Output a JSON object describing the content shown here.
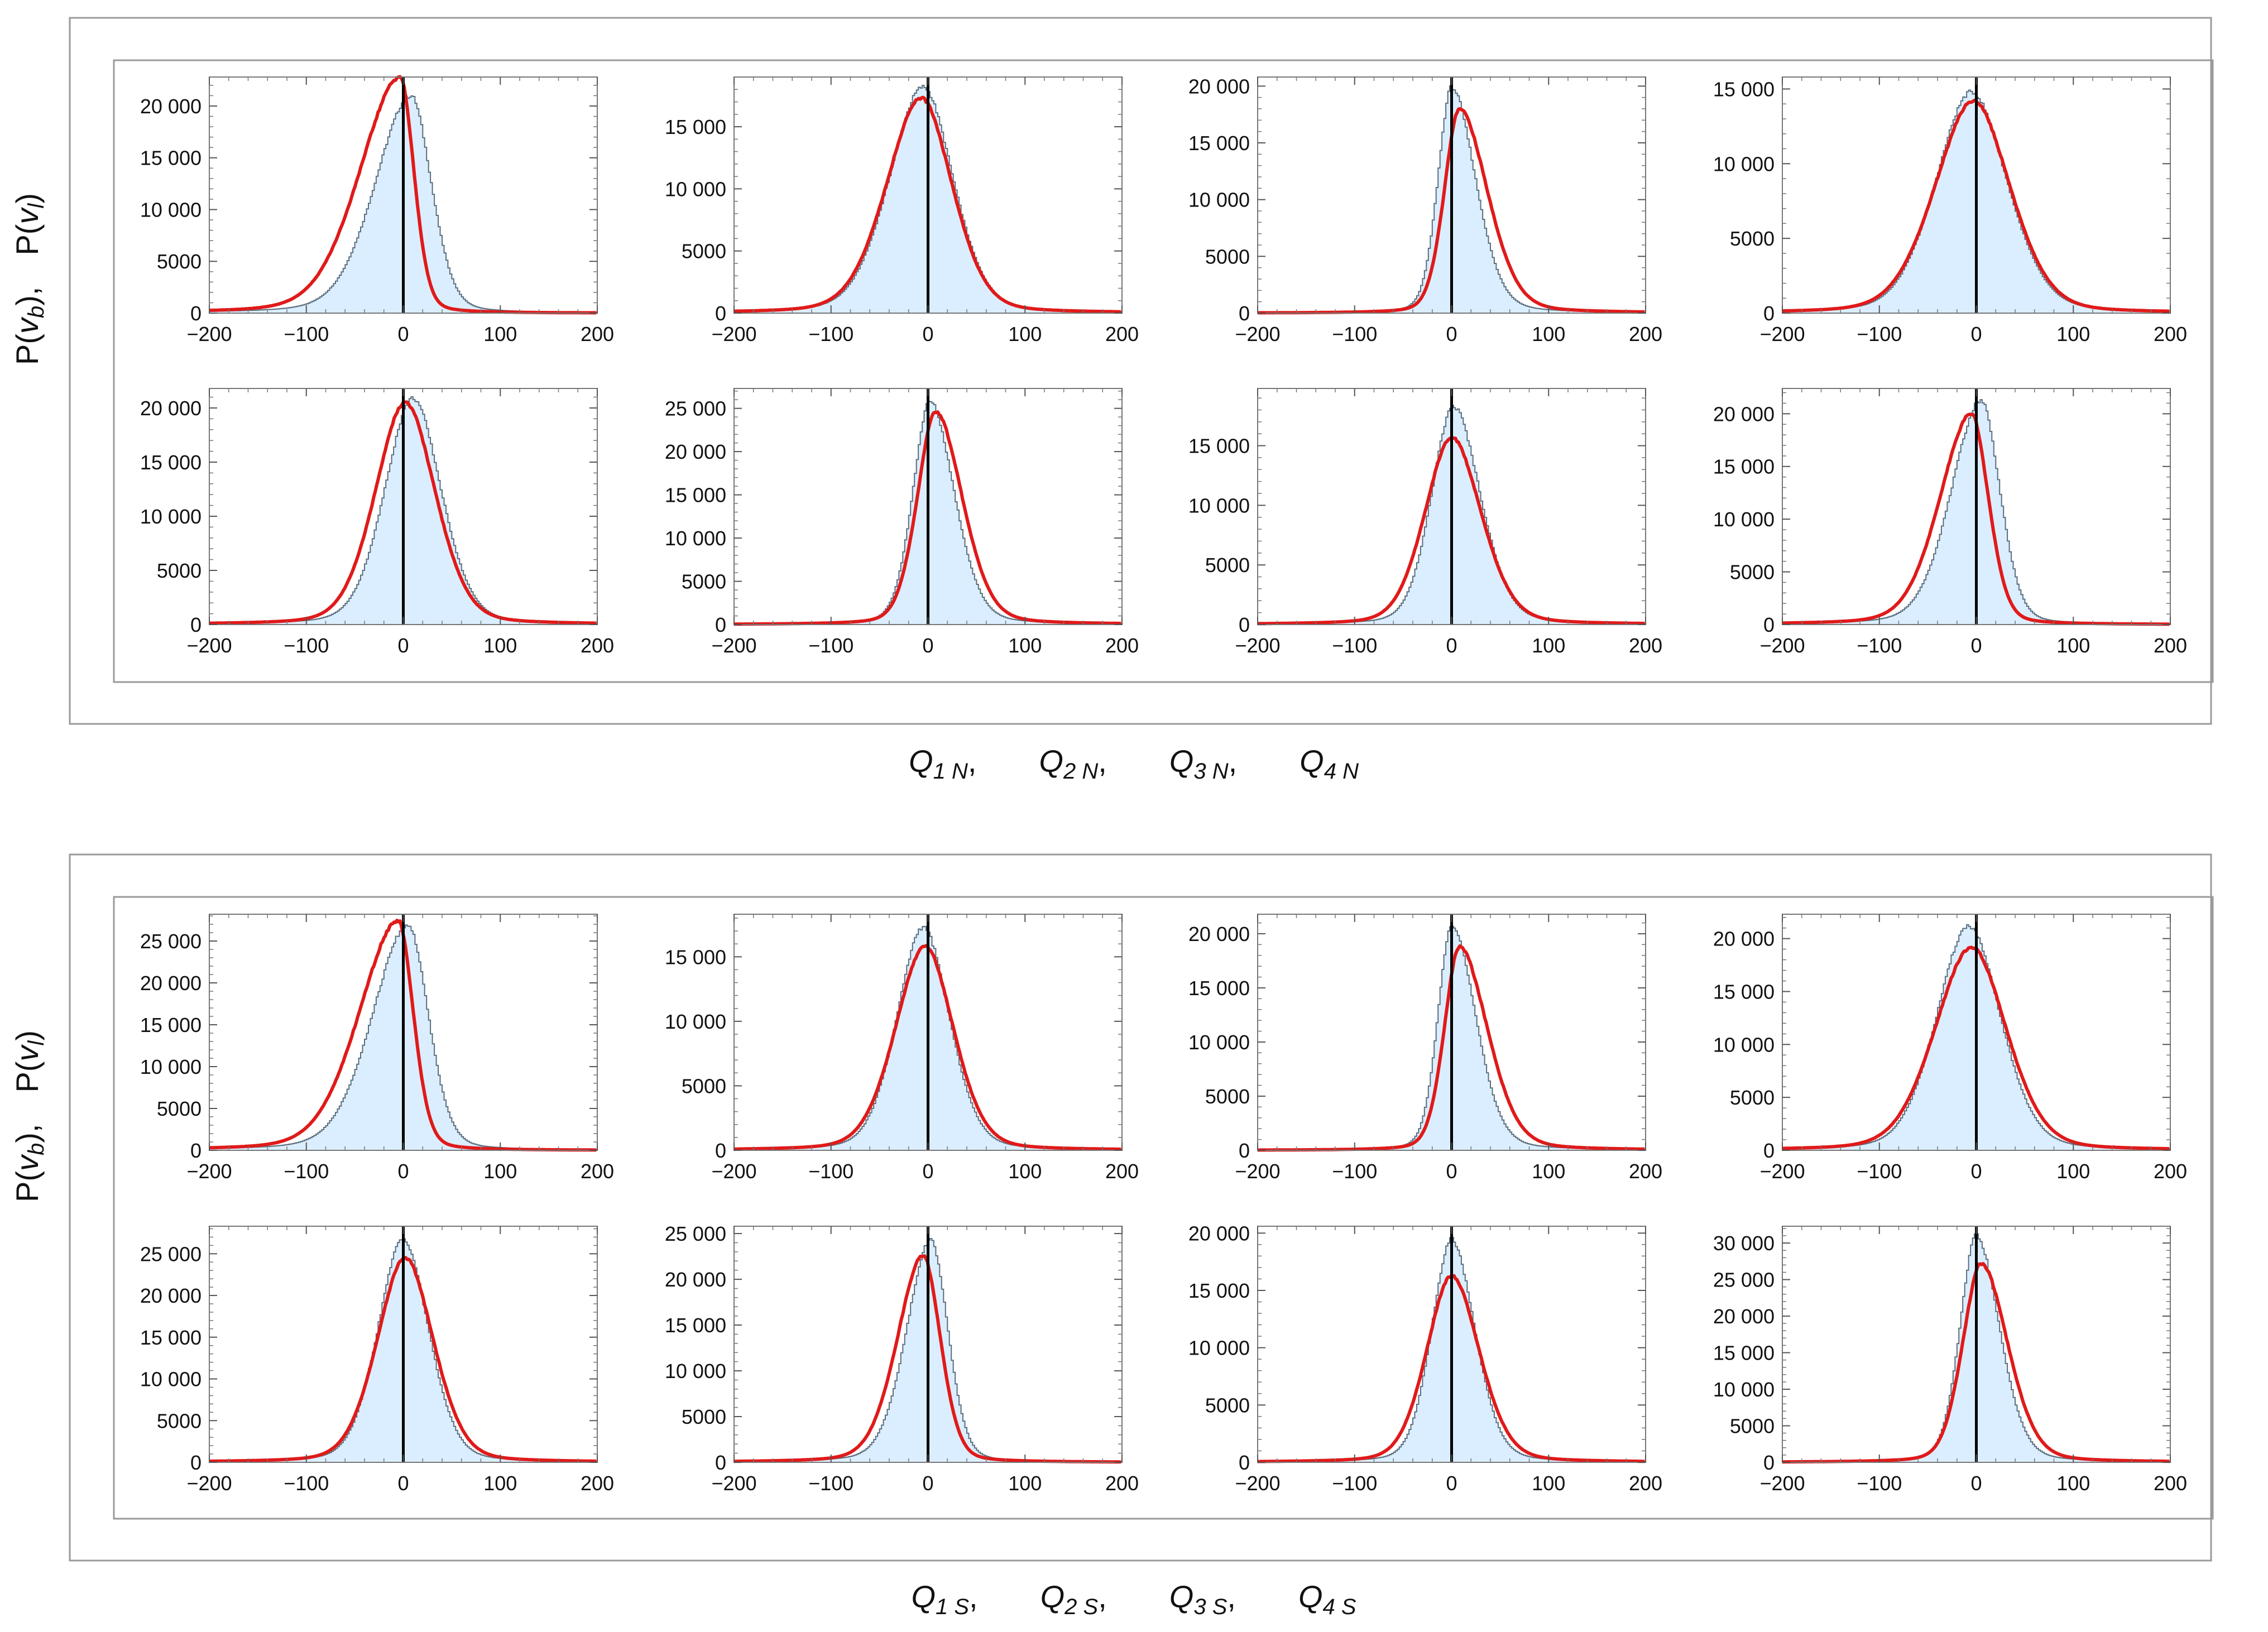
{
  "figure": {
    "groups": [
      {
        "id": "north",
        "ylabel": {
          "pre": "P(",
          "v1": "v",
          "s1": "b",
          "mid": "),",
          "pre2": "P(",
          "v2": "v",
          "s2": "l",
          "post": ")"
        },
        "xlabel": [
          {
            "q": "Q",
            "sub": "1 N",
            "sep": ","
          },
          {
            "q": "Q",
            "sub": "2 N",
            "sep": ","
          },
          {
            "q": "Q",
            "sub": "3 N",
            "sep": ","
          },
          {
            "q": "Q",
            "sub": "4 N",
            "sep": ""
          }
        ]
      },
      {
        "id": "south",
        "ylabel": {
          "pre": "P(",
          "v1": "v",
          "s1": "b",
          "mid": "),",
          "pre2": "P(",
          "v2": "v",
          "s2": "l",
          "post": ")"
        },
        "xlabel": [
          {
            "q": "Q",
            "sub": "1 S",
            "sep": ","
          },
          {
            "q": "Q",
            "sub": "2 S",
            "sep": ","
          },
          {
            "q": "Q",
            "sub": "3 S",
            "sep": ","
          },
          {
            "q": "Q",
            "sub": "4 S",
            "sep": ""
          }
        ]
      }
    ],
    "colors": {
      "histogram_fill": "#dbeeff",
      "histogram_edge": "#5a6e7e",
      "curve": "#e01a1a",
      "zero_line": "#000000",
      "frame": "#9a9a9a"
    }
  },
  "chart_data": [
    {
      "group": "north",
      "row": 0,
      "col": 0,
      "type": "area",
      "xlim": [
        -200,
        200
      ],
      "ylim": [
        0,
        22800
      ],
      "yticks": [
        0,
        5000,
        10000,
        15000,
        20000
      ],
      "ytick_labels": [
        "0",
        "5000",
        "10 000",
        "15 000",
        "20 000"
      ],
      "xticks": [
        -200,
        -100,
        0,
        100,
        200
      ],
      "xtick_labels": [
        "-200",
        "-100",
        "0",
        "100",
        "200"
      ],
      "histogram": {
        "peak": 21000,
        "center": 8,
        "width": 30,
        "skew": -0.55
      },
      "curve": {
        "peak": 22800,
        "center": -3,
        "width": 29,
        "skew": -1.0
      }
    },
    {
      "group": "north",
      "row": 0,
      "col": 1,
      "type": "area",
      "xlim": [
        -200,
        200
      ],
      "ylim": [
        0,
        19000
      ],
      "yticks": [
        0,
        5000,
        10000,
        15000
      ],
      "ytick_labels": [
        "0",
        "5000",
        "10 000",
        "15 000"
      ],
      "xticks": [
        -200,
        -100,
        0,
        100,
        200
      ],
      "xtick_labels": [
        "-200",
        "-100",
        "0",
        "100",
        "200"
      ],
      "histogram": {
        "peak": 18200,
        "center": -5,
        "width": 34,
        "skew": -0.12
      },
      "curve": {
        "peak": 17300,
        "center": -7,
        "width": 35,
        "skew": -0.12
      }
    },
    {
      "group": "north",
      "row": 0,
      "col": 2,
      "type": "area",
      "xlim": [
        -200,
        200
      ],
      "ylim": [
        0,
        20800
      ],
      "yticks": [
        0,
        5000,
        10000,
        15000,
        20000
      ],
      "ytick_labels": [
        "0",
        "5000",
        "10 000",
        "15 000",
        "20 000"
      ],
      "xticks": [
        -200,
        -100,
        0,
        100,
        200
      ],
      "xtick_labels": [
        "-200",
        "-100",
        "0",
        "100",
        "200"
      ],
      "histogram": {
        "peak": 19900,
        "center": 0,
        "width": 20,
        "skew": 0.55
      },
      "curve": {
        "peak": 18000,
        "center": 8,
        "width": 23,
        "skew": 0.6
      }
    },
    {
      "group": "north",
      "row": 0,
      "col": 3,
      "type": "area",
      "xlim": [
        -200,
        200
      ],
      "ylim": [
        0,
        15800
      ],
      "yticks": [
        0,
        5000,
        10000,
        15000
      ],
      "ytick_labels": [
        "0",
        "5000",
        "10 000",
        "15 000"
      ],
      "xticks": [
        -200,
        -100,
        0,
        100,
        200
      ],
      "xtick_labels": [
        "-200",
        "-100",
        "0",
        "100",
        "200"
      ],
      "histogram": {
        "peak": 14800,
        "center": -5,
        "width": 38,
        "skew": 0.0
      },
      "curve": {
        "peak": 14200,
        "center": -3,
        "width": 40,
        "skew": -0.05
      }
    },
    {
      "group": "north",
      "row": 1,
      "col": 0,
      "type": "area",
      "xlim": [
        -200,
        200
      ],
      "ylim": [
        0,
        21800
      ],
      "yticks": [
        0,
        5000,
        10000,
        15000,
        20000
      ],
      "ytick_labels": [
        "0",
        "5000",
        "10 000",
        "15 000",
        "20 000"
      ],
      "xticks": [
        -200,
        -100,
        0,
        100,
        200
      ],
      "xtick_labels": [
        "-200",
        "-100",
        "0",
        "100",
        "200"
      ],
      "histogram": {
        "peak": 20900,
        "center": 10,
        "width": 30,
        "skew": 0.0
      },
      "curve": {
        "peak": 20500,
        "center": 2,
        "width": 32,
        "skew": 0.0
      }
    },
    {
      "group": "north",
      "row": 1,
      "col": 1,
      "type": "area",
      "xlim": [
        -200,
        200
      ],
      "ylim": [
        0,
        27300
      ],
      "yticks": [
        0,
        5000,
        10000,
        15000,
        20000,
        25000
      ],
      "ytick_labels": [
        "0",
        "5000",
        "10 000",
        "15 000",
        "20 000",
        "25 000"
      ],
      "xticks": [
        -200,
        -100,
        0,
        100,
        200
      ],
      "xtick_labels": [
        "-200",
        "-100",
        "0",
        "100",
        "200"
      ],
      "histogram": {
        "peak": 25800,
        "center": 2,
        "width": 22,
        "skew": 0.35
      },
      "curve": {
        "peak": 24600,
        "center": 8,
        "width": 24,
        "skew": 0.35
      }
    },
    {
      "group": "north",
      "row": 1,
      "col": 2,
      "type": "area",
      "xlim": [
        -200,
        200
      ],
      "ylim": [
        0,
        19800
      ],
      "yticks": [
        0,
        5000,
        10000,
        15000
      ],
      "ytick_labels": [
        "0",
        "5000",
        "10 000",
        "15 000"
      ],
      "xticks": [
        -200,
        -100,
        0,
        100,
        200
      ],
      "xtick_labels": [
        "-200",
        "-100",
        "0",
        "100",
        "200"
      ],
      "histogram": {
        "peak": 18300,
        "center": 2,
        "width": 26,
        "skew": 0.2
      },
      "curve": {
        "peak": 15700,
        "center": 0,
        "width": 30,
        "skew": 0.1
      }
    },
    {
      "group": "north",
      "row": 1,
      "col": 3,
      "type": "area",
      "xlim": [
        -200,
        200
      ],
      "ylim": [
        0,
        22400
      ],
      "yticks": [
        0,
        5000,
        10000,
        15000,
        20000
      ],
      "ytick_labels": [
        "0",
        "5000",
        "10 000",
        "15 000",
        "20 000"
      ],
      "xticks": [
        -200,
        -100,
        0,
        100,
        200
      ],
      "xtick_labels": [
        "-200",
        "-100",
        "0",
        "100",
        "200"
      ],
      "histogram": {
        "peak": 21300,
        "center": 5,
        "width": 26,
        "skew": -0.45
      },
      "curve": {
        "peak": 20000,
        "center": -5,
        "width": 26,
        "skew": -0.6
      }
    },
    {
      "group": "south",
      "row": 0,
      "col": 0,
      "type": "area",
      "xlim": [
        -200,
        200
      ],
      "ylim": [
        0,
        28200
      ],
      "yticks": [
        0,
        5000,
        10000,
        15000,
        20000,
        25000
      ],
      "ytick_labels": [
        "0",
        "5000",
        "10 000",
        "15 000",
        "20 000",
        "25 000"
      ],
      "xticks": [
        -200,
        -100,
        0,
        100,
        200
      ],
      "xtick_labels": [
        "-200",
        "-100",
        "0",
        "100",
        "200"
      ],
      "histogram": {
        "peak": 26900,
        "center": 5,
        "width": 30,
        "skew": -0.55
      },
      "curve": {
        "peak": 27400,
        "center": -5,
        "width": 29,
        "skew": -0.9
      }
    },
    {
      "group": "south",
      "row": 0,
      "col": 1,
      "type": "area",
      "xlim": [
        -200,
        200
      ],
      "ylim": [
        0,
        18300
      ],
      "yticks": [
        0,
        5000,
        10000,
        15000
      ],
      "ytick_labels": [
        "0",
        "5000",
        "10 000",
        "15 000"
      ],
      "xticks": [
        -200,
        -100,
        0,
        100,
        200
      ],
      "xtick_labels": [
        "-200",
        "-100",
        "0",
        "100",
        "200"
      ],
      "histogram": {
        "peak": 17300,
        "center": -5,
        "width": 28,
        "skew": 0.0
      },
      "curve": {
        "peak": 15800,
        "center": -3,
        "width": 31,
        "skew": -0.05
      }
    },
    {
      "group": "south",
      "row": 0,
      "col": 2,
      "type": "area",
      "xlim": [
        -200,
        200
      ],
      "ylim": [
        0,
        21800
      ],
      "yticks": [
        0,
        5000,
        10000,
        15000,
        20000
      ],
      "ytick_labels": [
        "0",
        "5000",
        "10 000",
        "15 000",
        "20 000"
      ],
      "xticks": [
        -200,
        -100,
        0,
        100,
        200
      ],
      "xtick_labels": [
        "-200",
        "-100",
        "0",
        "100",
        "200"
      ],
      "histogram": {
        "peak": 20900,
        "center": 0,
        "width": 20,
        "skew": 0.55
      },
      "curve": {
        "peak": 18800,
        "center": 8,
        "width": 23,
        "skew": 0.6
      }
    },
    {
      "group": "south",
      "row": 0,
      "col": 3,
      "type": "area",
      "xlim": [
        -200,
        200
      ],
      "ylim": [
        0,
        22300
      ],
      "yticks": [
        0,
        5000,
        10000,
        15000,
        20000
      ],
      "ytick_labels": [
        "0",
        "5000",
        "10 000",
        "15 000",
        "20 000"
      ],
      "xticks": [
        -200,
        -100,
        0,
        100,
        200
      ],
      "xtick_labels": [
        "-200",
        "-100",
        "0",
        "100",
        "200"
      ],
      "histogram": {
        "peak": 21200,
        "center": -8,
        "width": 34,
        "skew": 0.0
      },
      "curve": {
        "peak": 19200,
        "center": -5,
        "width": 38,
        "skew": -0.05
      }
    },
    {
      "group": "south",
      "row": 1,
      "col": 0,
      "type": "area",
      "xlim": [
        -200,
        200
      ],
      "ylim": [
        0,
        28300
      ],
      "yticks": [
        0,
        5000,
        10000,
        15000,
        20000,
        25000
      ],
      "ytick_labels": [
        "0",
        "5000",
        "10 000",
        "15 000",
        "20 000",
        "25 000"
      ],
      "xticks": [
        -200,
        -100,
        0,
        100,
        200
      ],
      "xtick_labels": [
        "-200",
        "-100",
        "0",
        "100",
        "200"
      ],
      "histogram": {
        "peak": 26800,
        "center": 0,
        "width": 27,
        "skew": 0.0
      },
      "curve": {
        "peak": 24500,
        "center": 2,
        "width": 30,
        "skew": 0.0
      }
    },
    {
      "group": "south",
      "row": 1,
      "col": 1,
      "type": "area",
      "xlim": [
        -200,
        200
      ],
      "ylim": [
        0,
        25800
      ],
      "yticks": [
        0,
        5000,
        10000,
        15000,
        20000,
        25000
      ],
      "ytick_labels": [
        "0",
        "5000",
        "10 000",
        "15 000",
        "20 000",
        "25 000"
      ],
      "xticks": [
        -200,
        -100,
        0,
        100,
        200
      ],
      "xtick_labels": [
        "-200",
        "-100",
        "0",
        "100",
        "200"
      ],
      "histogram": {
        "peak": 24300,
        "center": 3,
        "width": 22,
        "skew": -0.35
      },
      "curve": {
        "peak": 22600,
        "center": -5,
        "width": 23,
        "skew": -0.4
      }
    },
    {
      "group": "south",
      "row": 1,
      "col": 2,
      "type": "area",
      "xlim": [
        -200,
        200
      ],
      "ylim": [
        0,
        20600
      ],
      "yticks": [
        0,
        5000,
        10000,
        15000,
        20000
      ],
      "ytick_labels": [
        "0",
        "5000",
        "10 000",
        "15 000",
        "20 000"
      ],
      "xticks": [
        -200,
        -100,
        0,
        100,
        200
      ],
      "xtick_labels": [
        "-200",
        "-100",
        "0",
        "100",
        "200"
      ],
      "histogram": {
        "peak": 19500,
        "center": 0,
        "width": 23,
        "skew": 0.15
      },
      "curve": {
        "peak": 16300,
        "center": 0,
        "width": 28,
        "skew": 0.1
      }
    },
    {
      "group": "south",
      "row": 1,
      "col": 3,
      "type": "area",
      "xlim": [
        -200,
        200
      ],
      "ylim": [
        0,
        32300
      ],
      "yticks": [
        0,
        5000,
        10000,
        15000,
        20000,
        25000,
        30000
      ],
      "ytick_labels": [
        "0",
        "5000",
        "10 000",
        "15 000",
        "20 000",
        "25 000",
        "30 000"
      ],
      "xticks": [
        -200,
        -100,
        0,
        100,
        200
      ],
      "xtick_labels": [
        "-200",
        "-100",
        "0",
        "100",
        "200"
      ],
      "histogram": {
        "peak": 31000,
        "center": 0,
        "width": 21,
        "skew": 0.35
      },
      "curve": {
        "peak": 27200,
        "center": 5,
        "width": 24,
        "skew": 0.35
      }
    }
  ]
}
